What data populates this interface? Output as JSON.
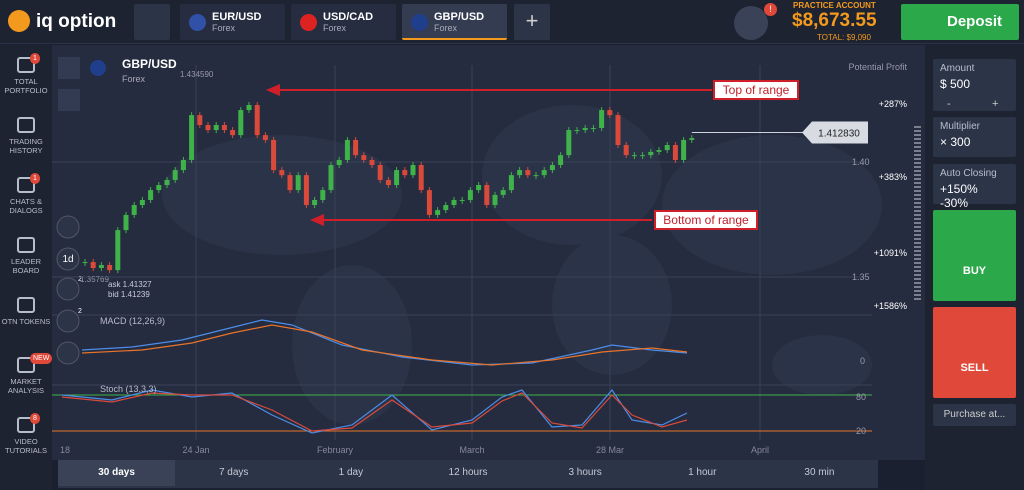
{
  "header": {
    "logo": "iq option",
    "tabs": [
      {
        "pair": "EUR/USD",
        "kind": "Forex"
      },
      {
        "pair": "USD/CAD",
        "kind": "Forex"
      },
      {
        "pair": "GBP/USD",
        "kind": "Forex"
      }
    ],
    "account_label": "PRACTICE ACCOUNT",
    "balance": "$8,673.55",
    "total": "TOTAL: $9,090",
    "deposit": "Deposit",
    "notice_badge": "!"
  },
  "sidebar": [
    {
      "label": "TOTAL PORTFOLIO",
      "badge": "1"
    },
    {
      "label": "TRADING HISTORY"
    },
    {
      "label": "CHATS & DIALOGS",
      "badge": "1"
    },
    {
      "label": "LEADER BOARD"
    },
    {
      "label": "OTN TOKENS"
    },
    {
      "label": "MARKET ANALYSIS",
      "badge": "NEW"
    },
    {
      "label": "VIDEO TUTORIALS",
      "badge": "8"
    }
  ],
  "chart": {
    "pair": "GBP/USD",
    "kind": "Forex",
    "high_label": "1.434590",
    "low_label": "1.35769",
    "ask": "ask 1.41327",
    "bid": "bid 1.41239",
    "period": "1d",
    "tool_badges": [
      "2",
      "2"
    ],
    "potential_profit": "Potential Profit",
    "profits": [
      "+287%",
      "+383%",
      "+1091%",
      "+1586%"
    ],
    "current_price": {
      "value": 1.41283,
      "label": "1.412830"
    },
    "ylim": [
      1.34,
      1.4435
    ],
    "yticks": [
      {
        "value": 1.4,
        "label": "1.40"
      },
      1.35
    ],
    "closes": [
      1.3565,
      1.3539,
      1.3552,
      1.353,
      1.3704,
      1.377,
      1.3813,
      1.3835,
      1.3878,
      1.39,
      1.3922,
      1.3965,
      1.4009,
      1.4204,
      1.4161,
      1.4139,
      1.4161,
      1.4139,
      1.4117,
      1.4226,
      1.4248,
      1.4117,
      1.4096,
      1.3965,
      1.3943,
      1.3878,
      1.3943,
      1.3813,
      1.3835,
      1.3878,
      1.3987,
      1.4009,
      1.4096,
      1.403,
      1.4009,
      1.3987,
      1.3922,
      1.39,
      1.3965,
      1.3943,
      1.3987,
      1.3878,
      1.377,
      1.3791,
      1.3813,
      1.3835,
      1.3835,
      1.3878,
      1.39,
      1.3813,
      1.3857,
      1.3878,
      1.3943,
      1.3965,
      1.3943,
      1.3943,
      1.3965,
      1.3987,
      1.403,
      1.4139,
      1.4139,
      1.4148,
      1.4148,
      1.4226,
      1.4204,
      1.4074,
      1.403,
      1.403,
      1.403,
      1.4044,
      1.4052,
      1.4074,
      1.4009,
      1.4096,
      1.4104
    ],
    "annotations": [
      "Top of range",
      "Bottom of range"
    ],
    "macd_label": "MACD (12,26,9)",
    "macd_zero": "0",
    "stoch_label": "Stoch (13,3,3)",
    "stoch_levels": [
      "80",
      "20"
    ],
    "x_labels": [
      "18",
      "24 Jan",
      "February",
      "March",
      "28 Mar",
      "April"
    ]
  },
  "timeframes": [
    "30 days",
    "7 days",
    "1 day",
    "12 hours",
    "3 hours",
    "1 hour",
    "30 min"
  ],
  "panel": {
    "amount_label": "Amount",
    "amount": "$ 500",
    "minus": "-",
    "plus": "+",
    "multiplier_label": "Multiplier",
    "multiplier": "× 300",
    "auto_label": "Auto Closing",
    "auto": "+150% -30%",
    "buy": "BUY",
    "sell": "SELL",
    "purchase": "Purchase at..."
  }
}
